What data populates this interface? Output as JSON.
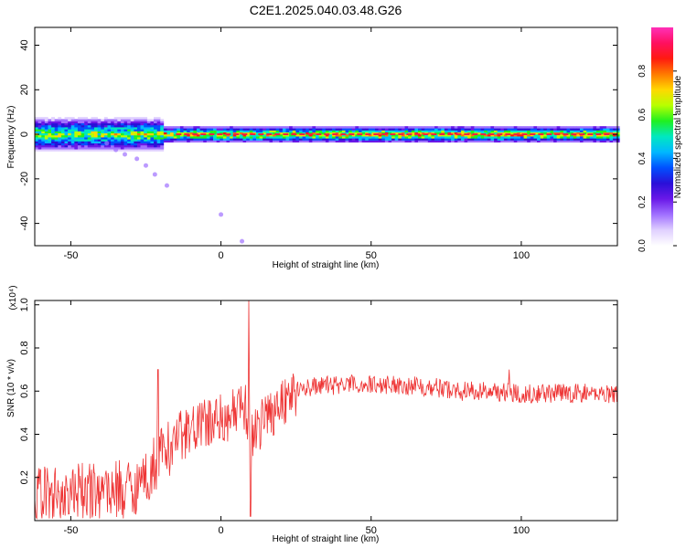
{
  "title": "C2E1.2025.040.03.48.G26",
  "colors": {
    "snr_line": "#ee3333",
    "spectrogram_ridge": "#ee2244",
    "colormap": [
      "#ffffff",
      "#e0d0ff",
      "#a070ff",
      "#6a18e8",
      "#2a10d8",
      "#0050ff",
      "#00b8ff",
      "#00e8c0",
      "#20f020",
      "#b8ff00",
      "#ffd800",
      "#ff7a00",
      "#ff1a10",
      "#ff1060",
      "#ff30b8"
    ]
  },
  "chart_data": [
    {
      "type": "heatmap",
      "xlabel": "Height of straight line (km)",
      "ylabel": "Frequency (Hz)",
      "xlim": [
        -62,
        132
      ],
      "ylim": [
        -50,
        48
      ],
      "x_ticks": [
        -50,
        0,
        50,
        100
      ],
      "y_ticks": [
        -40,
        -20,
        0,
        20,
        40
      ],
      "x_tick_labels": [
        "-50",
        "0",
        "50",
        "100"
      ],
      "y_tick_labels": [
        "-40",
        "-20",
        "0",
        "20",
        "40"
      ],
      "colorbar": {
        "label": "Normalized spectral amplitude",
        "range": [
          0,
          1
        ],
        "ticks": [
          0.0,
          0.2,
          0.4,
          0.6,
          0.8
        ],
        "tick_labels": [
          "0.0",
          "0.2",
          "0.4",
          "0.6",
          "0.8"
        ]
      },
      "ridge": {
        "frequency_hz": 0,
        "from_height_km": -62,
        "to_height_km": 132,
        "band_halfwidth_hz": {
          "below_-20km": 6,
          "above_-20km": 2
        }
      },
      "scatter_tail": [
        {
          "x": -38,
          "y": -4
        },
        {
          "x": -35,
          "y": -7
        },
        {
          "x": -32,
          "y": -9
        },
        {
          "x": -28,
          "y": -11
        },
        {
          "x": -25,
          "y": -14
        },
        {
          "x": -22,
          "y": -18
        },
        {
          "x": -18,
          "y": -23
        },
        {
          "x": 0,
          "y": -36
        },
        {
          "x": 7,
          "y": -48
        }
      ]
    },
    {
      "type": "line",
      "xlabel": "Height of straight line (km)",
      "ylabel": "SNR (10 * v/v)",
      "y_scale_label": "(x10⁴)",
      "xlim": [
        -62,
        132
      ],
      "ylim": [
        0,
        1.02
      ],
      "x_ticks": [
        -50,
        0,
        50,
        100
      ],
      "y_ticks": [
        0.2,
        0.4,
        0.6,
        0.8,
        1.0
      ],
      "x_tick_labels": [
        "-50",
        "0",
        "50",
        "100"
      ],
      "y_tick_labels": [
        "0.2",
        "0.4",
        "0.6",
        "0.8",
        "1.0"
      ],
      "series": [
        {
          "trend": {
            "x": [
              -62,
              -50,
              -40,
              -30,
              -25,
              -20,
              -15,
              -10,
              -5,
              0,
              5,
              8,
              10,
              15,
              20,
              25,
              30,
              40,
              50,
              60,
              70,
              80,
              90,
              100,
              110,
              120,
              132
            ],
            "y": [
              0.12,
              0.12,
              0.14,
              0.15,
              0.2,
              0.3,
              0.38,
              0.42,
              0.45,
              0.47,
              0.5,
              0.52,
              0.4,
              0.48,
              0.55,
              0.6,
              0.62,
              0.63,
              0.63,
              0.63,
              0.62,
              0.6,
              0.6,
              0.59,
              0.59,
              0.59,
              0.59
            ]
          },
          "spikes": [
            {
              "x": -21,
              "y": 0.7
            },
            {
              "x": 9.3,
              "y": 1.02
            },
            {
              "x": 9.8,
              "y": 0.02
            },
            {
              "x": 96,
              "y": 0.7
            }
          ]
        }
      ]
    }
  ]
}
